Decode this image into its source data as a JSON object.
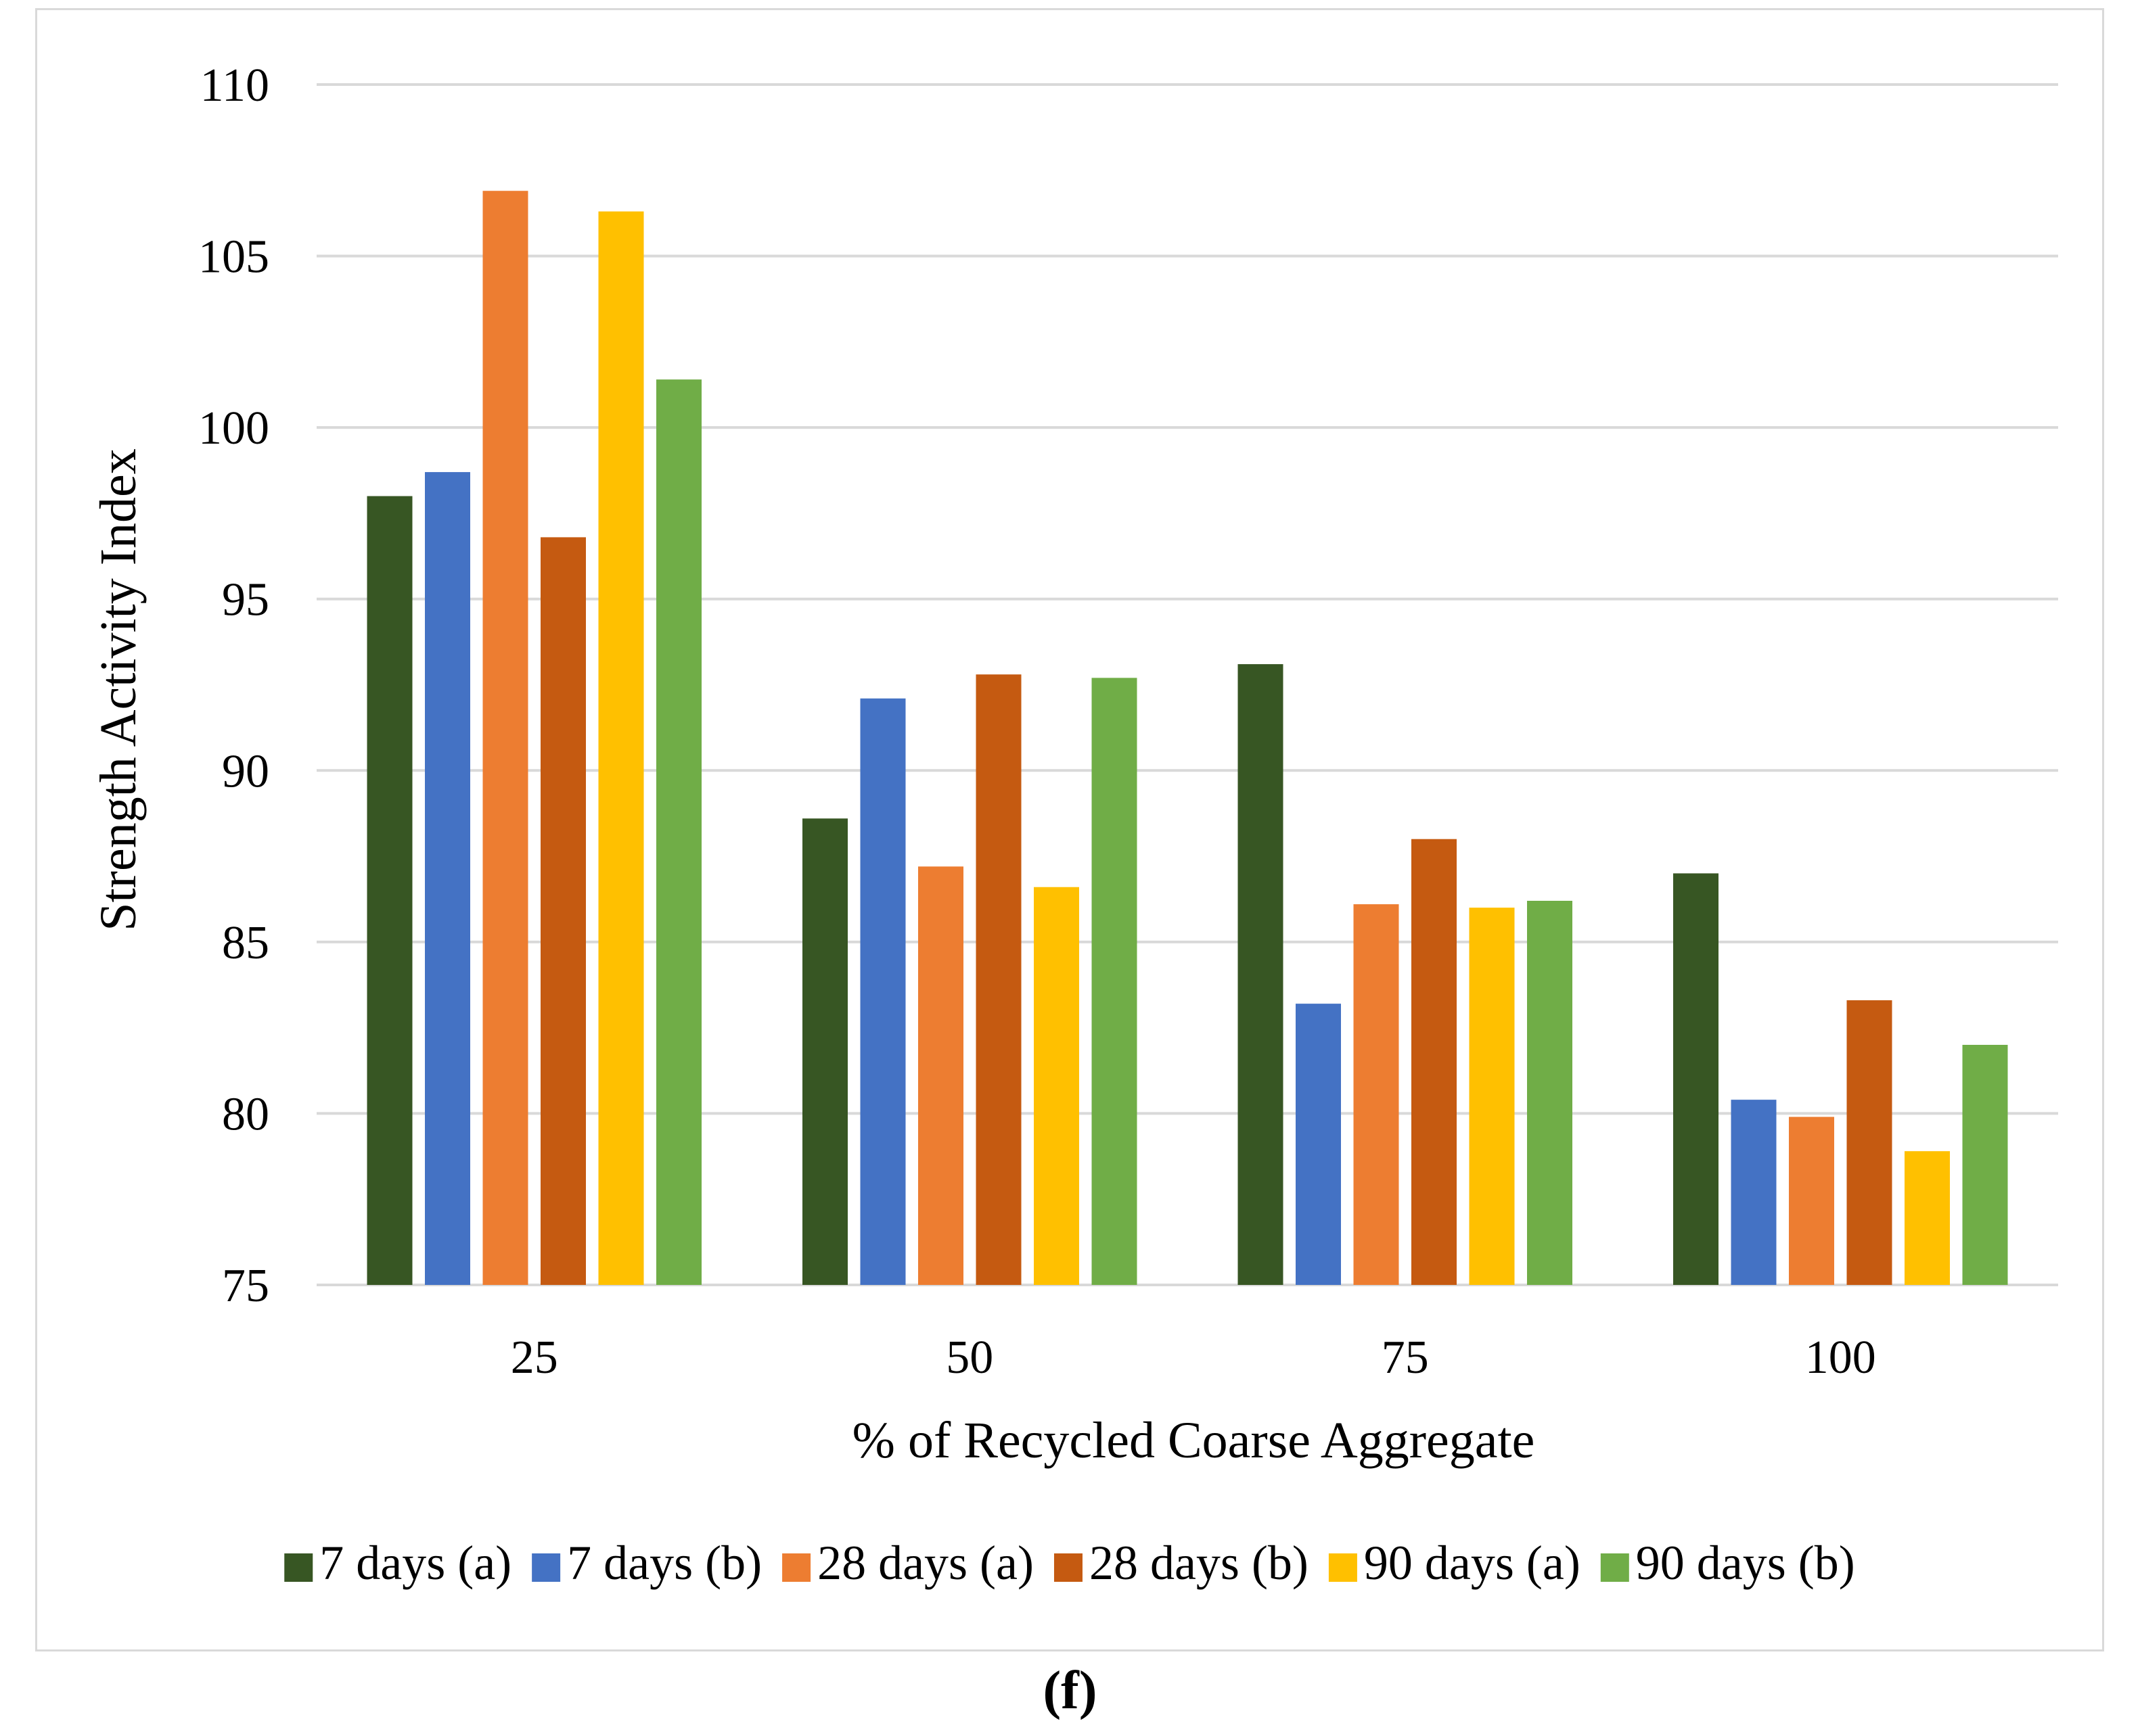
{
  "chart_data": {
    "type": "bar",
    "title": "",
    "xlabel": "% of Recycled Coarse Aggregate",
    "ylabel": "Strength Activity Index",
    "ylim": [
      75,
      110
    ],
    "yticks": [
      75,
      80,
      85,
      90,
      95,
      100,
      105,
      110
    ],
    "grid": true,
    "legend_position": "bottom",
    "categories": [
      "25",
      "50",
      "75",
      "100"
    ],
    "series": [
      {
        "name": "7 days (a)",
        "color": "#375623",
        "values": [
          98.0,
          88.6,
          93.1,
          87.0
        ]
      },
      {
        "name": "7 days (b)",
        "color": "#4472C4",
        "values": [
          98.7,
          92.1,
          83.2,
          80.4
        ]
      },
      {
        "name": "28 days (a)",
        "color": "#ED7D31",
        "values": [
          106.9,
          87.2,
          86.1,
          79.9
        ]
      },
      {
        "name": "28 days (b)",
        "color": "#C55A11",
        "values": [
          96.8,
          92.8,
          88.0,
          83.3
        ]
      },
      {
        "name": "90 days (a)",
        "color": "#FFC000",
        "values": [
          106.3,
          86.6,
          86.0,
          78.9
        ]
      },
      {
        "name": "90 days (b)",
        "color": "#70AD47",
        "values": [
          101.4,
          92.7,
          86.2,
          82.0
        ]
      }
    ]
  },
  "panel_label": "(f)"
}
